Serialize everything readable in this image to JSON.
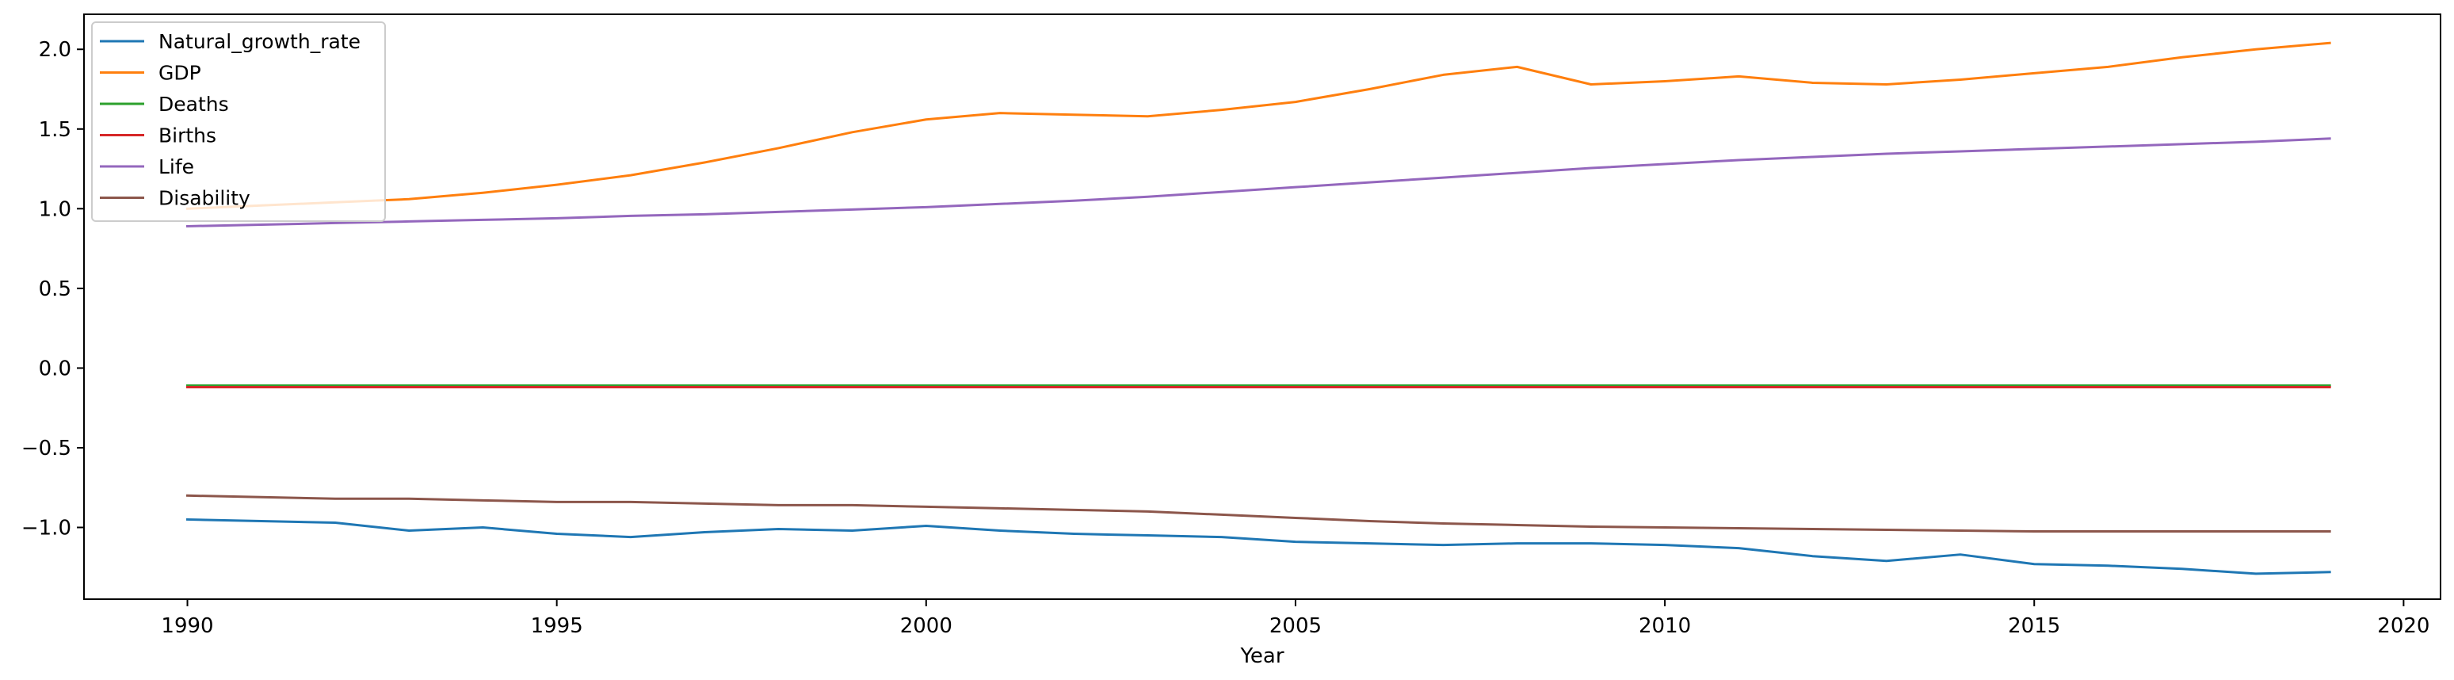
{
  "chart_data": {
    "type": "line",
    "xlabel": "Year",
    "ylabel": "",
    "xlim": [
      1988.6,
      2020.5
    ],
    "ylim": [
      -1.45,
      2.22
    ],
    "x_ticks": [
      1990,
      1995,
      2000,
      2005,
      2010,
      2015,
      2020
    ],
    "y_ticks": [
      -1.0,
      -0.5,
      0.0,
      0.5,
      1.0,
      1.5,
      2.0
    ],
    "x_tick_labels": [
      "1990",
      "1995",
      "2000",
      "2005",
      "2010",
      "2015",
      "2020"
    ],
    "y_tick_labels": [
      "−1.0",
      "−0.5",
      "0.0",
      "0.5",
      "1.0",
      "1.5",
      "2.0"
    ],
    "grid": false,
    "legend_position": "top-left",
    "x": [
      1990,
      1991,
      1992,
      1993,
      1994,
      1995,
      1996,
      1997,
      1998,
      1999,
      2000,
      2001,
      2002,
      2003,
      2004,
      2005,
      2006,
      2007,
      2008,
      2009,
      2010,
      2011,
      2012,
      2013,
      2014,
      2015,
      2016,
      2017,
      2018,
      2019
    ],
    "series": [
      {
        "name": "Natural_growth_rate",
        "color": "#1f77b4",
        "values": [
          -0.95,
          -0.96,
          -0.97,
          -1.02,
          -1.0,
          -1.04,
          -1.06,
          -1.03,
          -1.01,
          -1.02,
          -0.99,
          -1.02,
          -1.04,
          -1.05,
          -1.06,
          -1.09,
          -1.1,
          -1.11,
          -1.1,
          -1.1,
          -1.11,
          -1.13,
          -1.18,
          -1.21,
          -1.17,
          -1.23,
          -1.24,
          -1.26,
          -1.29,
          -1.28
        ]
      },
      {
        "name": "GDP",
        "color": "#ff7f0e",
        "values": [
          1.0,
          1.02,
          1.04,
          1.06,
          1.1,
          1.15,
          1.21,
          1.29,
          1.38,
          1.48,
          1.56,
          1.6,
          1.59,
          1.58,
          1.62,
          1.67,
          1.75,
          1.84,
          1.89,
          1.78,
          1.8,
          1.83,
          1.79,
          1.78,
          1.81,
          1.85,
          1.89,
          1.95,
          2.0,
          2.04
        ]
      },
      {
        "name": "Deaths",
        "color": "#2ca02c",
        "values": [
          -0.11,
          -0.11,
          -0.11,
          -0.11,
          -0.11,
          -0.11,
          -0.11,
          -0.11,
          -0.11,
          -0.11,
          -0.11,
          -0.11,
          -0.11,
          -0.11,
          -0.11,
          -0.11,
          -0.11,
          -0.11,
          -0.11,
          -0.11,
          -0.11,
          -0.11,
          -0.11,
          -0.11,
          -0.11,
          -0.11,
          -0.11,
          -0.11,
          -0.11,
          -0.11
        ]
      },
      {
        "name": "Births",
        "color": "#d62728",
        "values": [
          -0.12,
          -0.12,
          -0.12,
          -0.12,
          -0.12,
          -0.12,
          -0.12,
          -0.12,
          -0.12,
          -0.12,
          -0.12,
          -0.12,
          -0.12,
          -0.12,
          -0.12,
          -0.12,
          -0.12,
          -0.12,
          -0.12,
          -0.12,
          -0.12,
          -0.12,
          -0.12,
          -0.12,
          -0.12,
          -0.12,
          -0.12,
          -0.12,
          -0.12,
          -0.12
        ]
      },
      {
        "name": "Life",
        "color": "#9467bd",
        "values": [
          0.89,
          0.9,
          0.91,
          0.92,
          0.93,
          0.94,
          0.955,
          0.965,
          0.98,
          0.995,
          1.01,
          1.03,
          1.05,
          1.075,
          1.105,
          1.135,
          1.165,
          1.195,
          1.225,
          1.255,
          1.28,
          1.305,
          1.325,
          1.345,
          1.36,
          1.375,
          1.39,
          1.405,
          1.42,
          1.44
        ]
      },
      {
        "name": "Disability",
        "color": "#8c564b",
        "values": [
          -0.8,
          -0.81,
          -0.82,
          -0.82,
          -0.83,
          -0.84,
          -0.84,
          -0.85,
          -0.86,
          -0.86,
          -0.87,
          -0.88,
          -0.89,
          -0.9,
          -0.92,
          -0.94,
          -0.96,
          -0.975,
          -0.985,
          -0.995,
          -1.0,
          -1.005,
          -1.01,
          -1.015,
          -1.02,
          -1.025,
          -1.025,
          -1.025,
          -1.025,
          -1.025
        ]
      }
    ]
  }
}
